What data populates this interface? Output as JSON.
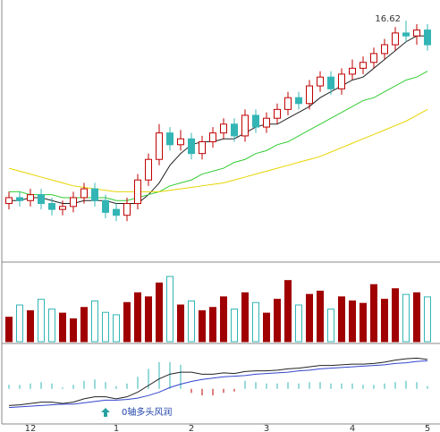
{
  "chart_data": {
    "type": "candlestick",
    "categories": [
      null,
      null,
      "12",
      null,
      null,
      null,
      null,
      null,
      null,
      null,
      "1",
      null,
      null,
      null,
      null,
      null,
      null,
      "2",
      null,
      null,
      null,
      null,
      null,
      null,
      "3",
      null,
      null,
      null,
      null,
      null,
      null,
      null,
      "4",
      null,
      null,
      null,
      null,
      null,
      null,
      "5"
    ],
    "open": [
      10.4,
      10.6,
      10.5,
      10.7,
      10.4,
      10.2,
      10.3,
      10.6,
      10.9,
      10.5,
      10.2,
      10.0,
      10.4,
      11.2,
      11.9,
      12.8,
      12.4,
      12.6,
      12.1,
      12.5,
      12.8,
      13.1,
      12.7,
      13.4,
      13.0,
      13.3,
      13.6,
      14.0,
      13.8,
      14.4,
      14.7,
      14.3,
      14.8,
      15.0,
      15.2,
      15.5,
      15.8,
      16.2,
      16.1,
      16.3
    ],
    "high": [
      10.8,
      10.8,
      10.9,
      10.9,
      10.6,
      10.5,
      10.8,
      11.1,
      11.1,
      10.7,
      10.4,
      10.6,
      11.4,
      12.1,
      13.1,
      13.0,
      12.9,
      12.8,
      12.7,
      13.0,
      13.3,
      13.3,
      13.6,
      13.6,
      13.5,
      13.8,
      14.2,
      14.2,
      14.6,
      14.9,
      14.9,
      15.0,
      15.3,
      15.4,
      15.7,
      16.0,
      16.4,
      16.62,
      16.5,
      16.5
    ],
    "low": [
      10.2,
      10.3,
      10.3,
      10.2,
      10.0,
      10.0,
      10.1,
      10.4,
      10.3,
      9.9,
      9.8,
      9.8,
      10.2,
      11.0,
      11.7,
      12.2,
      12.2,
      11.9,
      11.9,
      12.3,
      12.6,
      12.5,
      12.5,
      12.8,
      12.8,
      13.1,
      13.4,
      13.6,
      13.6,
      14.2,
      14.1,
      14.1,
      14.6,
      14.8,
      15.0,
      15.3,
      15.6,
      15.9,
      15.8,
      15.6
    ],
    "close": [
      10.6,
      10.5,
      10.7,
      10.4,
      10.2,
      10.3,
      10.6,
      10.9,
      10.5,
      10.1,
      10.0,
      10.4,
      11.2,
      11.9,
      12.8,
      12.4,
      12.6,
      12.1,
      12.5,
      12.8,
      13.1,
      12.7,
      13.4,
      13.0,
      13.3,
      13.6,
      14.0,
      13.8,
      14.4,
      14.7,
      14.3,
      14.8,
      15.0,
      15.2,
      15.5,
      15.8,
      16.2,
      16.1,
      16.3,
      15.8
    ],
    "up_color": "#c00000",
    "down_color": "#33b5b5",
    "ylim": [
      8.5,
      17.2
    ],
    "max_index": 37,
    "ma_lines": [
      {
        "color": "#222222",
        "values": [
          10.5,
          10.5,
          10.6,
          10.6,
          10.5,
          10.4,
          10.4,
          10.5,
          10.5,
          10.5,
          10.4,
          10.4,
          10.4,
          10.7,
          11.1,
          11.7,
          12.1,
          12.4,
          12.5,
          12.5,
          12.6,
          12.6,
          12.8,
          13.0,
          13.1,
          13.1,
          13.3,
          13.5,
          13.7,
          14.0,
          14.2,
          14.4,
          14.6,
          14.7,
          15.0,
          15.3,
          15.6,
          15.9,
          16.1,
          16.1
        ]
      },
      {
        "color": "#33cc33",
        "values": [
          10.8,
          10.8,
          10.7,
          10.7,
          10.7,
          10.6,
          10.6,
          10.6,
          10.6,
          10.6,
          10.5,
          10.5,
          10.6,
          10.7,
          10.8,
          11.0,
          11.1,
          11.2,
          11.4,
          11.5,
          11.6,
          11.8,
          11.9,
          12.1,
          12.2,
          12.4,
          12.5,
          12.7,
          12.9,
          13.1,
          13.3,
          13.5,
          13.7,
          13.9,
          14.0,
          14.2,
          14.4,
          14.6,
          14.7,
          14.9
        ]
      },
      {
        "color": "#e8d400",
        "values": [
          11.6,
          11.5,
          11.4,
          11.3,
          11.2,
          11.1,
          11.0,
          10.95,
          10.9,
          10.85,
          10.8,
          10.8,
          10.8,
          10.8,
          10.8,
          10.85,
          10.9,
          10.95,
          11.0,
          11.05,
          11.1,
          11.2,
          11.3,
          11.4,
          11.5,
          11.6,
          11.7,
          11.8,
          11.9,
          12.0,
          12.15,
          12.3,
          12.45,
          12.6,
          12.75,
          12.9,
          13.05,
          13.2,
          13.4,
          13.6
        ]
      }
    ],
    "volume": [
      30,
      45,
      38,
      52,
      40,
      35,
      28,
      42,
      50,
      36,
      33,
      48,
      60,
      55,
      72,
      80,
      45,
      50,
      38,
      42,
      55,
      40,
      60,
      48,
      35,
      52,
      75,
      45,
      58,
      62,
      40,
      55,
      50,
      47,
      70,
      52,
      65,
      58,
      60,
      55
    ],
    "volume_lim": [
      0,
      90
    ],
    "dif": [
      -0.25,
      -0.24,
      -0.22,
      -0.2,
      -0.2,
      -0.22,
      -0.2,
      -0.15,
      -0.12,
      -0.12,
      -0.15,
      -0.12,
      -0.05,
      0.05,
      0.15,
      0.22,
      0.25,
      0.25,
      0.22,
      0.22,
      0.24,
      0.23,
      0.26,
      0.27,
      0.27,
      0.28,
      0.3,
      0.31,
      0.33,
      0.35,
      0.35,
      0.36,
      0.37,
      0.37,
      0.38,
      0.4,
      0.43,
      0.45,
      0.46,
      0.44
    ],
    "dea": [
      -0.28,
      -0.27,
      -0.26,
      -0.25,
      -0.24,
      -0.23,
      -0.23,
      -0.21,
      -0.19,
      -0.17,
      -0.17,
      -0.16,
      -0.14,
      -0.1,
      -0.05,
      0.02,
      0.07,
      0.11,
      0.14,
      0.16,
      0.18,
      0.19,
      0.2,
      0.22,
      0.23,
      0.24,
      0.25,
      0.27,
      0.28,
      0.3,
      0.31,
      0.32,
      0.33,
      0.34,
      0.35,
      0.36,
      0.38,
      0.39,
      0.41,
      0.42
    ],
    "macd": [
      0.06,
      0.06,
      0.08,
      0.1,
      0.08,
      0.02,
      0.06,
      0.12,
      0.14,
      0.1,
      0.04,
      0.08,
      0.18,
      0.3,
      0.4,
      0.4,
      0.36,
      -0.06,
      -0.1,
      -0.1,
      -0.06,
      -0.04,
      0.12,
      0.1,
      0.08,
      0.08,
      0.1,
      0.08,
      0.1,
      0.1,
      0.08,
      0.08,
      0.08,
      0.06,
      0.06,
      0.08,
      0.1,
      0.12,
      0.1,
      0.04
    ],
    "macd_lim": [
      -0.5,
      0.6
    ],
    "annotation": "0轴多头风润"
  }
}
